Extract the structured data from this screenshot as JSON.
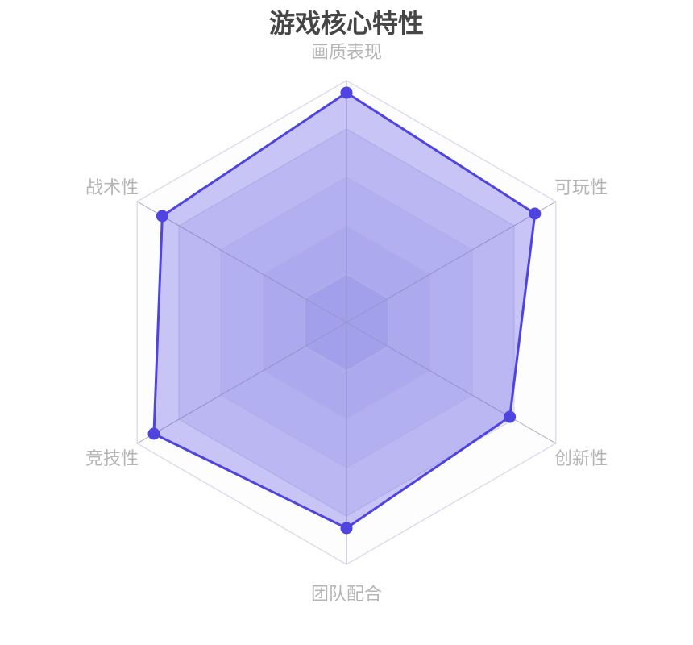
{
  "chart_data": {
    "type": "radar",
    "title": "游戏核心特性",
    "indicators": [
      {
        "name": "画质表现",
        "max": 100
      },
      {
        "name": "战术性",
        "max": 100
      },
      {
        "name": "竞技性",
        "max": 100
      },
      {
        "name": "团队配合",
        "max": 100
      },
      {
        "name": "创新性",
        "max": 100
      },
      {
        "name": "可玩性",
        "max": 100
      }
    ],
    "series": [
      {
        "values": [
          95,
          88,
          92,
          85,
          78,
          90
        ]
      }
    ],
    "split_number": 5,
    "colors": {
      "line": "#4f44e0",
      "fill": "rgba(80,70,229,0.3)",
      "axis": "#b8b8c8",
      "split_line": "#dcdcec"
    }
  }
}
